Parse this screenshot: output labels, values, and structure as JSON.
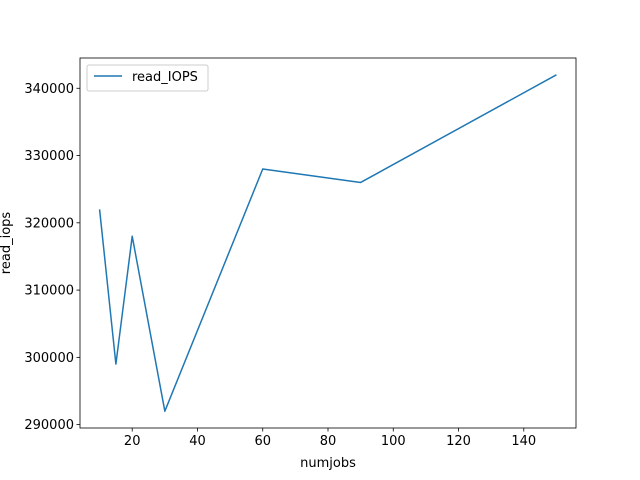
{
  "chart_data": {
    "type": "line",
    "title": "",
    "xlabel": "numjobs",
    "ylabel": "read_iops",
    "xlim": [
      4,
      156
    ],
    "ylim": [
      289500,
      344500
    ],
    "xticks": [
      20,
      40,
      60,
      80,
      100,
      120,
      140
    ],
    "yticks": [
      290000,
      300000,
      310000,
      320000,
      330000,
      340000
    ],
    "legend": {
      "location": "top-left",
      "entries": [
        "read_IOPS"
      ]
    },
    "colors": {
      "read_IOPS": "#1f77b4"
    },
    "series": [
      {
        "name": "read_IOPS",
        "x": [
          10,
          15,
          20,
          30,
          60,
          90,
          150
        ],
        "y": [
          322000,
          299000,
          318000,
          292000,
          328000,
          326000,
          342000
        ]
      }
    ]
  }
}
